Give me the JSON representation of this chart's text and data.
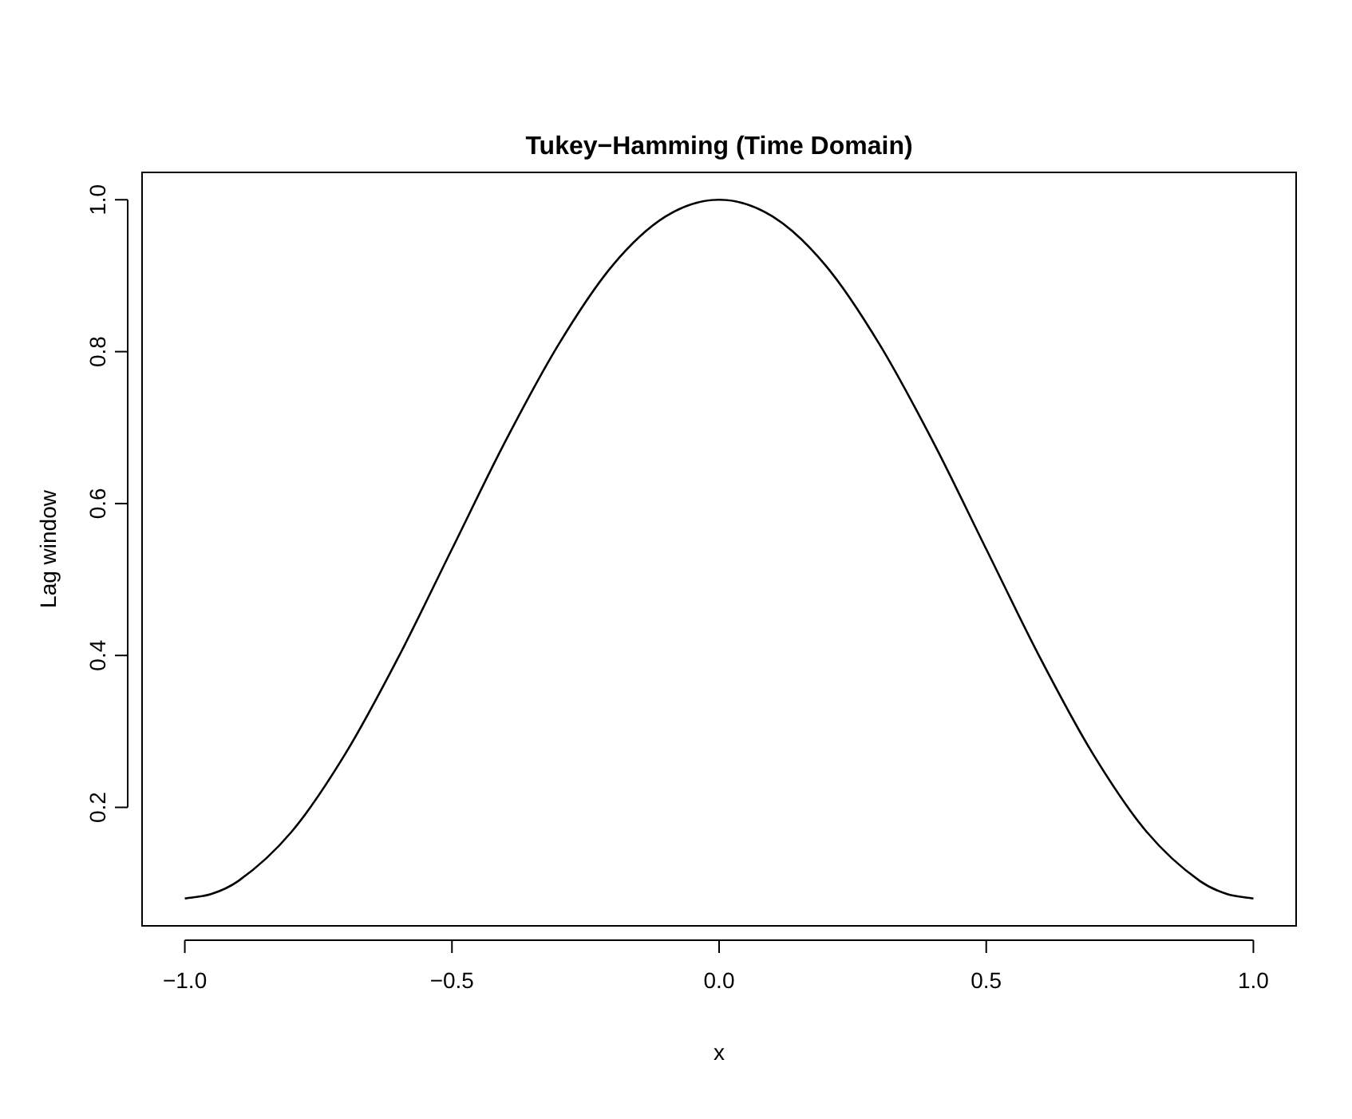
{
  "chart_data": {
    "type": "line",
    "title": "Tukey−Hamming (Time Domain)",
    "xlabel": "x",
    "ylabel": "Lag window",
    "x": [
      -1.0,
      -0.95,
      -0.9,
      -0.8,
      -0.7,
      -0.6,
      -0.5,
      -0.4,
      -0.3,
      -0.2,
      -0.1,
      0.0,
      0.1,
      0.2,
      0.3,
      0.4,
      0.5,
      0.6,
      0.7,
      0.8,
      0.9,
      0.95,
      1.0
    ],
    "series": [
      {
        "color": "#000000",
        "values": [
          0.08,
          0.086,
          0.103,
          0.168,
          0.27,
          0.398,
          0.54,
          0.682,
          0.81,
          0.913,
          0.978,
          1.0,
          0.978,
          0.913,
          0.81,
          0.682,
          0.54,
          0.398,
          0.27,
          0.168,
          0.103,
          0.086,
          0.08
        ]
      }
    ],
    "xlim": [
      -1.08,
      1.08
    ],
    "xticks": [
      {
        "value": -1.0,
        "label": "−1.0"
      },
      {
        "value": -0.5,
        "label": "−0.5"
      },
      {
        "value": 0.0,
        "label": "0.0"
      },
      {
        "value": 0.5,
        "label": "0.5"
      },
      {
        "value": 1.0,
        "label": "1.0"
      }
    ],
    "ylim": [
      0.044,
      1.036
    ],
    "yticks": [
      {
        "value": 0.2,
        "label": "0.2"
      },
      {
        "value": 0.4,
        "label": "0.4"
      },
      {
        "value": 0.6,
        "label": "0.6"
      },
      {
        "value": 0.8,
        "label": "0.8"
      },
      {
        "value": 1.0,
        "label": "1.0"
      }
    ],
    "grid": false,
    "legend": false,
    "marker": "none",
    "line_style": "solid"
  }
}
